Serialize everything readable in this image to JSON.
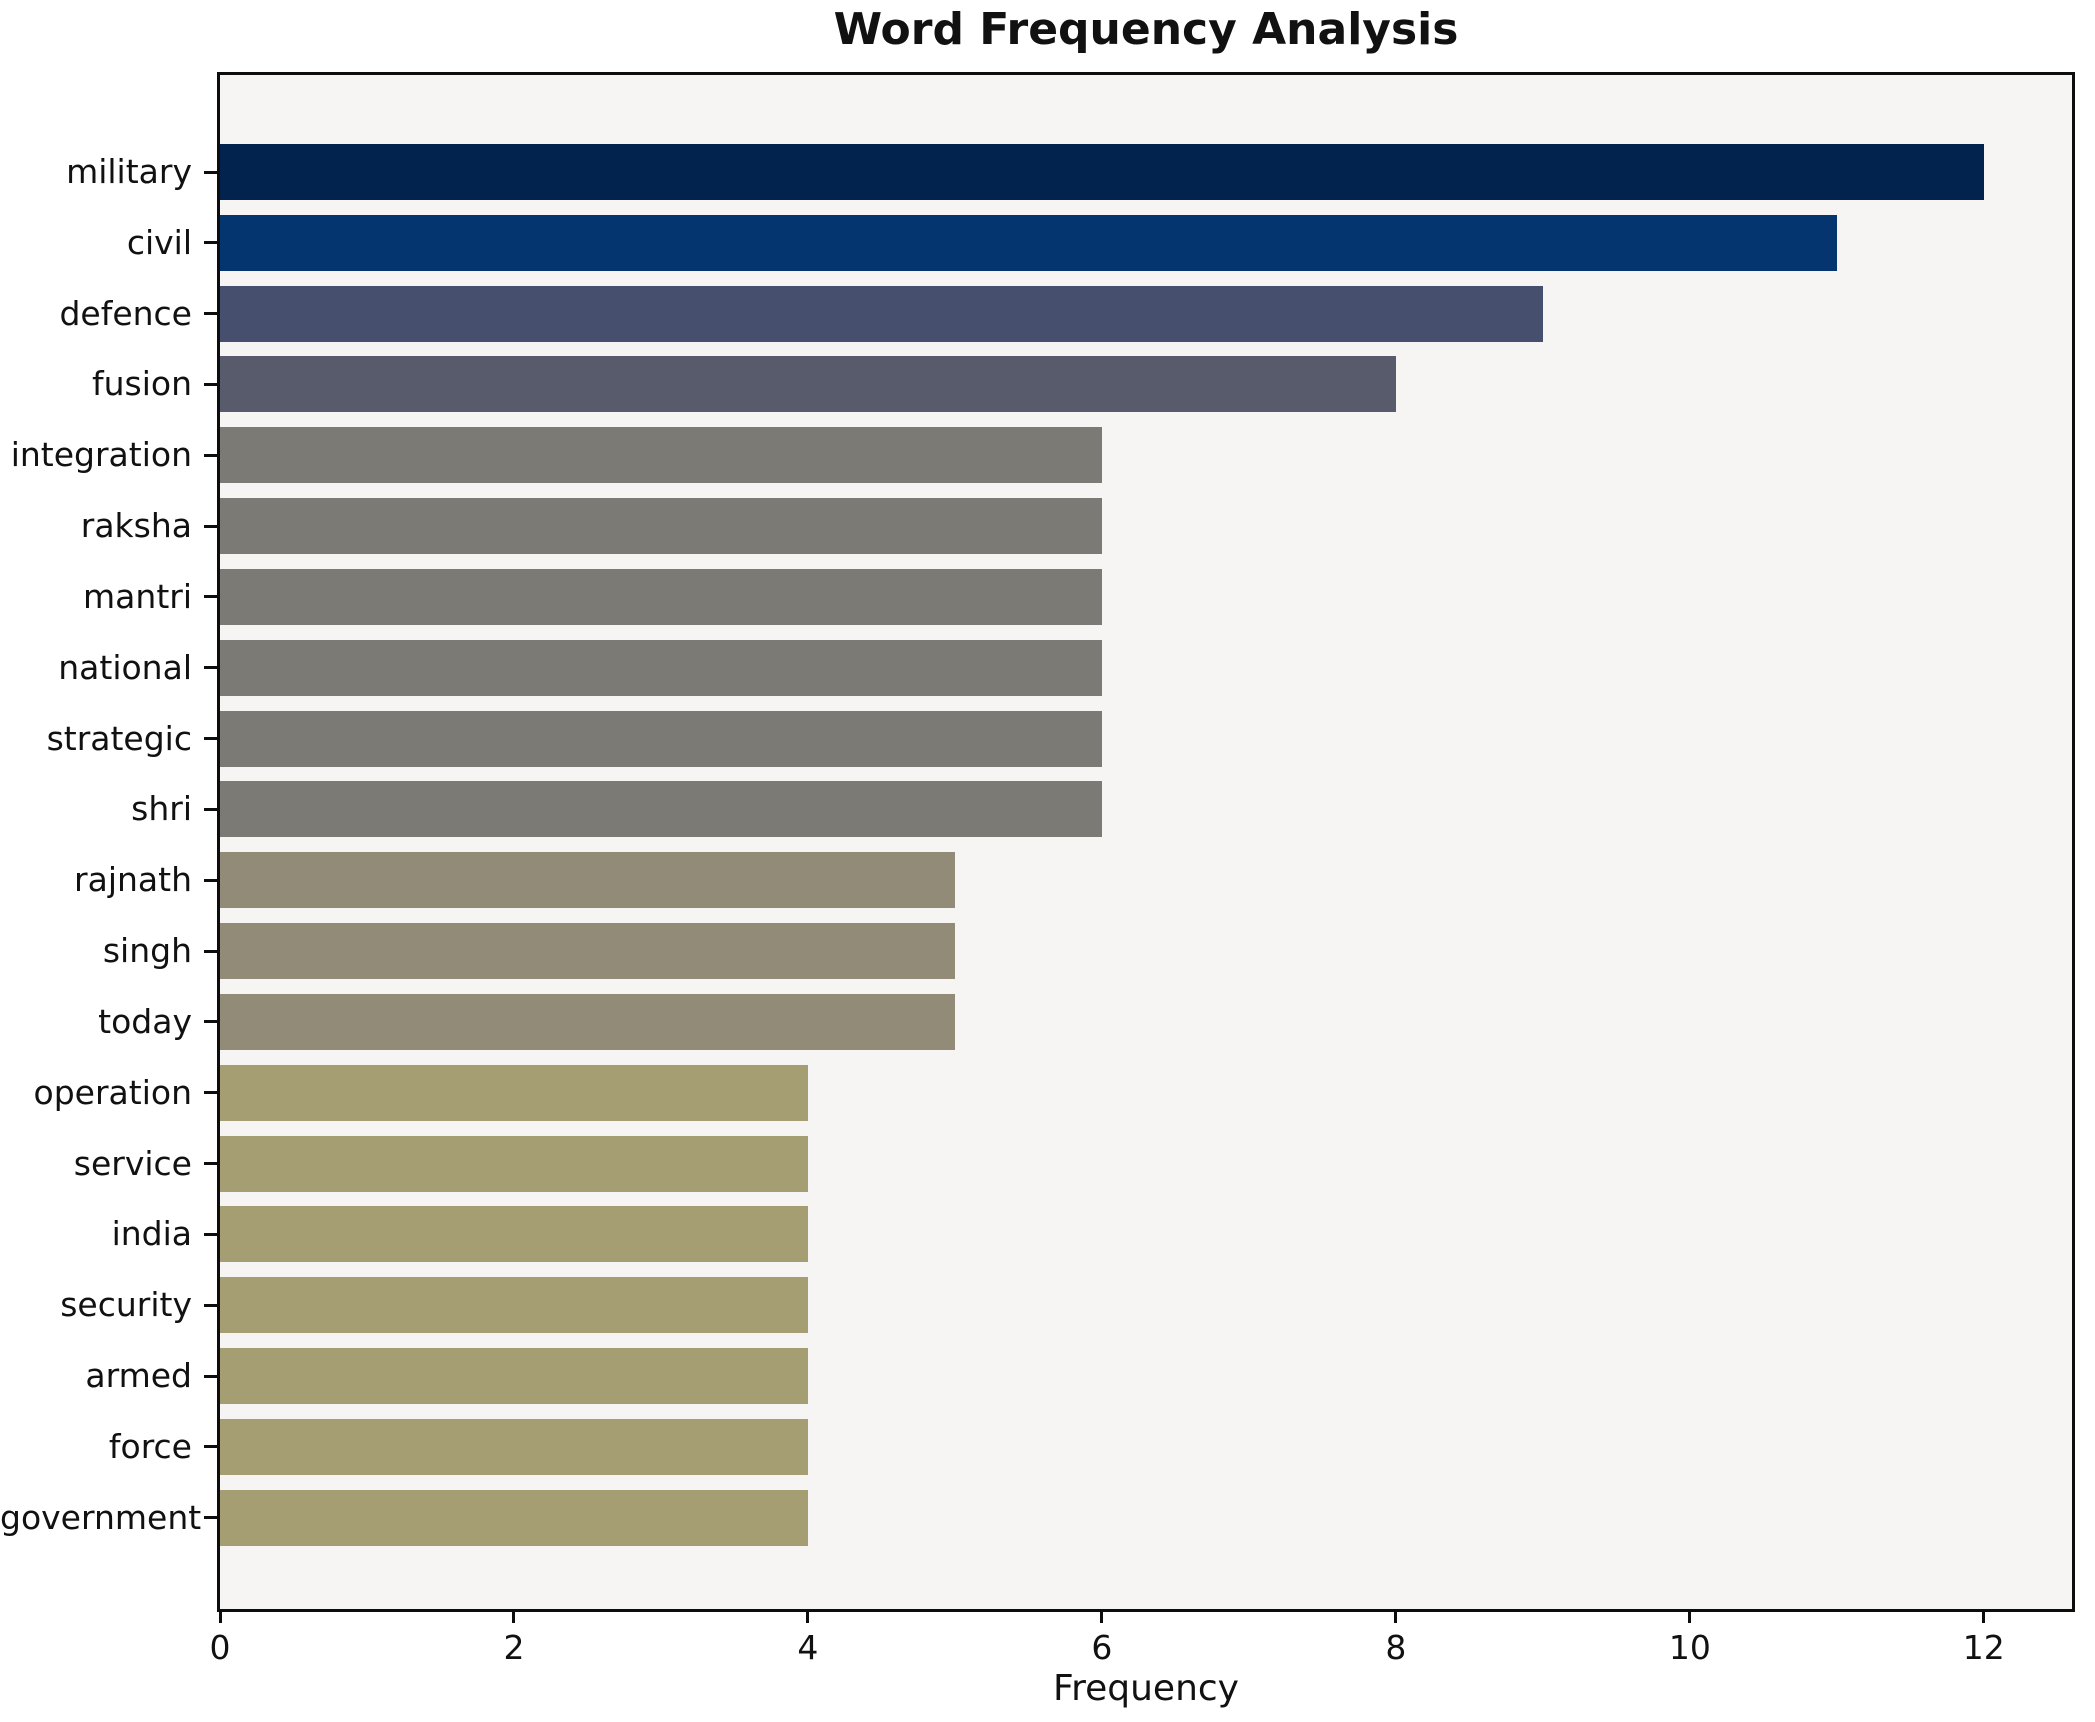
{
  "title": "Word Frequency Analysis",
  "xlabel": "Frequency",
  "colors": {
    "plot_background": "#f6f5f3",
    "figure_background": "#ffffff",
    "axis_and_text": "#111111"
  },
  "chart_data": {
    "type": "bar",
    "orientation": "horizontal",
    "title": "Word Frequency Analysis",
    "xlabel": "Frequency",
    "ylabel": "",
    "xlim": [
      0,
      12.6
    ],
    "x_ticks": [
      0,
      2,
      4,
      6,
      8,
      10,
      12
    ],
    "grid": false,
    "legend": "none",
    "categories": [
      "military",
      "civil",
      "defence",
      "fusion",
      "integration",
      "raksha",
      "mantri",
      "national",
      "strategic",
      "shri",
      "rajnath",
      "singh",
      "today",
      "operation",
      "service",
      "india",
      "security",
      "armed",
      "force",
      "government"
    ],
    "values": [
      12,
      11,
      9,
      8,
      6,
      6,
      6,
      6,
      6,
      6,
      5,
      5,
      5,
      4,
      4,
      4,
      4,
      4,
      4,
      4
    ],
    "bar_colors": [
      "#02234e",
      "#04356f",
      "#46506e",
      "#575b6b",
      "#7b7a74",
      "#7b7a74",
      "#7b7a74",
      "#7b7a74",
      "#7b7a74",
      "#7b7a74",
      "#928b77",
      "#928b77",
      "#928b77",
      "#a59e72",
      "#a59e72",
      "#a59e72",
      "#a59e72",
      "#a59e72",
      "#a59e72",
      "#a59e72"
    ]
  }
}
